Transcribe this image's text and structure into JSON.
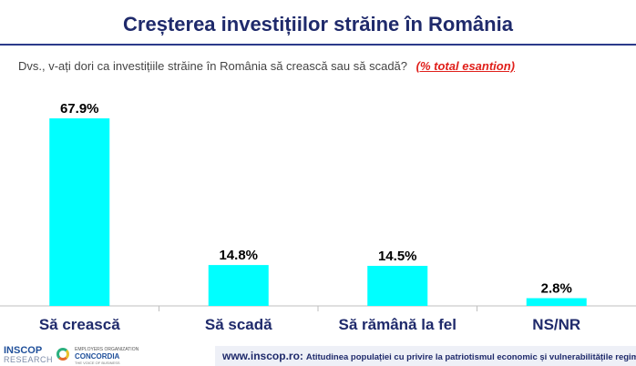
{
  "title": "Creșterea investițiilor străine în România",
  "question": "Dvs., v-ați dori ca investițiile străine în România să crească sau să scadă?",
  "question_note": "(% total esantion)",
  "chart_data": {
    "type": "bar",
    "categories": [
      "Să crească",
      "Să scadă",
      "Să rămână la fel",
      "NS/NR"
    ],
    "values": [
      67.9,
      14.8,
      14.5,
      2.8
    ],
    "labels": [
      "67.9%",
      "14.8%",
      "14.5%",
      "2.8%"
    ],
    "ylim": [
      0,
      70
    ],
    "bar_color": "#00ffff",
    "grid": false
  },
  "footer": {
    "url": "www.inscop.ro",
    "separator": ":",
    "description": "Atitudinea populației cu privire la patriotismul economic și vulnerabilitățile regimului democratic"
  },
  "logos": {
    "inscop_name": "INSCOP",
    "inscop_sub": "RESEARCH",
    "concordia_small": "EMPLOYERS ORGANIZATION",
    "concordia_name": "CONCORDIA",
    "concordia_tiny": "THE VOICE OF BUSINESS"
  }
}
